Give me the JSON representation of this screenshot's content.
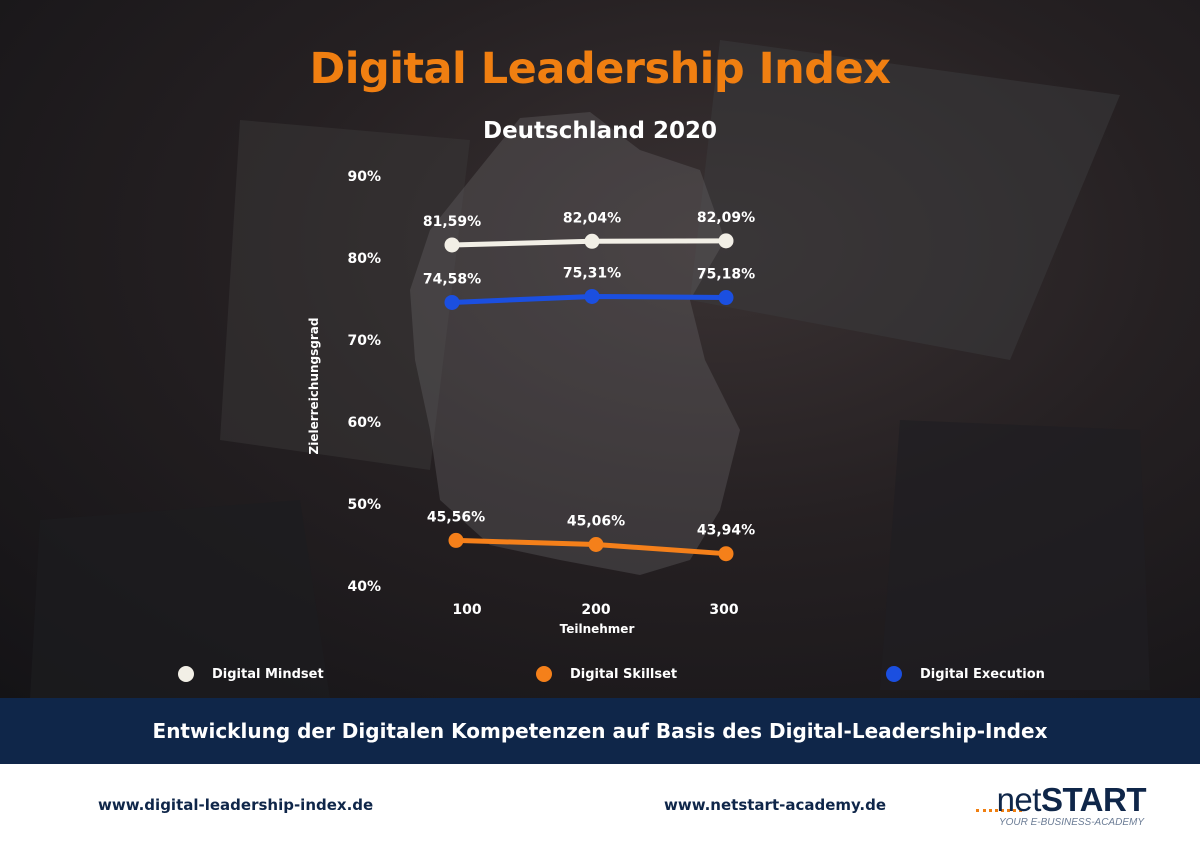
{
  "header": {
    "title": "Digital Leadership Index",
    "subtitle": "Deutschland 2020"
  },
  "chart_data": {
    "type": "line",
    "title": "Digital Leadership Index",
    "subtitle": "Deutschland 2020",
    "xlabel": "Teilnehmer",
    "ylabel": "Zielerreichungsgrad",
    "categories": [
      "100",
      "200",
      "300"
    ],
    "yticks": [
      "90%",
      "80%",
      "70%",
      "60%",
      "50%",
      "40%"
    ],
    "ylim": [
      40,
      90
    ],
    "grid": false,
    "legend_position": "bottom",
    "series": [
      {
        "name": "Digital Mindset",
        "color": "#f2efe6",
        "values": [
          81.59,
          82.04,
          82.09
        ],
        "labels": [
          "81,59%",
          "82,04%",
          "82,09%"
        ]
      },
      {
        "name": "Digital Skillset",
        "color": "#f5801a",
        "values": [
          45.56,
          45.06,
          43.94
        ],
        "labels": [
          "45,56%",
          "45,06%",
          "43,94%"
        ]
      },
      {
        "name": "Digital Execution",
        "color": "#1b4fe0",
        "values": [
          74.58,
          75.31,
          75.18
        ],
        "labels": [
          "74,58%",
          "75,31%",
          "75,18%"
        ]
      }
    ]
  },
  "banner": {
    "text": "Entwicklung der Digitalen Kompetenzen auf Basis des Digital-Leadership-Index"
  },
  "footer": {
    "link_left": "www.digital-leadership-index.de",
    "link_right": "www.netstart-academy.de",
    "logo_part1": "net",
    "logo_part2": "START",
    "logo_tagline": "YOUR E-BUSINESS-ACADEMY"
  },
  "colors": {
    "accent_orange": "#f07f11",
    "banner_navy": "#0f2649"
  }
}
